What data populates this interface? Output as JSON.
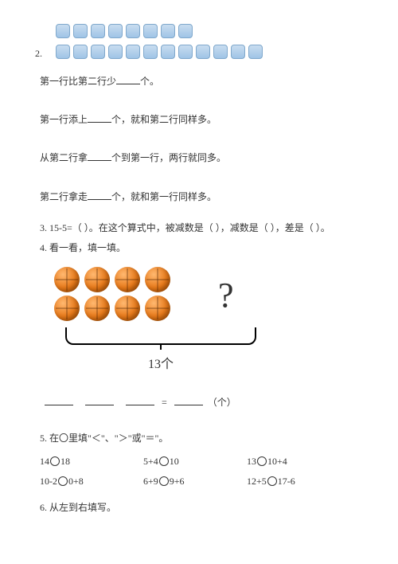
{
  "q2": {
    "label": "2.",
    "row1_count": 8,
    "row2_count": 12,
    "lines": {
      "a_pre": "第一行比第二行少",
      "a_post": "个。",
      "b_pre": "第一行添上",
      "b_post": "个，就和第二行同样多。",
      "c_pre": "从第二行拿",
      "c_post": "个到第一行，两行就同多。",
      "d_pre": "第二行拿走",
      "d_post": "个，就和第一行同样多。"
    }
  },
  "q3": {
    "text": "3. 15-5=（    ）。在这个算式中，被减数是（    ），减数是（    ），差是（    ）。"
  },
  "q4": {
    "title": "4. 看一看，填一填。",
    "ball_rows": [
      4,
      4
    ],
    "qmark": "?",
    "total_label": "13个",
    "eq_eq": "=",
    "eq_unit": "（个）"
  },
  "q5": {
    "title": "5. 在〇里填\"＜\"、\"＞\"或\"＝\"。",
    "rows": [
      [
        {
          "left": "14",
          "right": "18"
        },
        {
          "left": "5+4",
          "right": "10"
        },
        {
          "left": "13",
          "right": "10+4"
        }
      ],
      [
        {
          "left": "10-2",
          "right": "0+8"
        },
        {
          "left": "6+9",
          "right": "9+6"
        },
        {
          "left": "12+5",
          "right": "17-6"
        }
      ]
    ]
  },
  "q6": {
    "title": "6. 从左到右填写。"
  }
}
